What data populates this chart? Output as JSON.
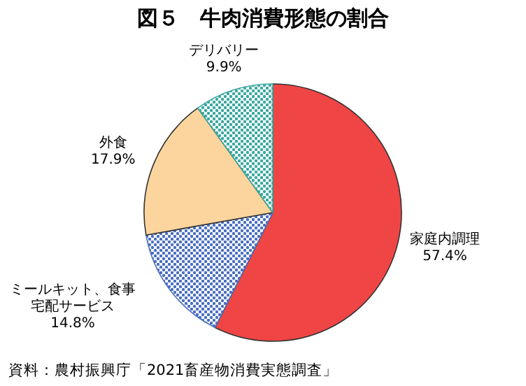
{
  "chart_data": {
    "type": "pie",
    "title": "図５　牛肉消費形態の割合",
    "categories": [
      "家庭内調理",
      "ミールキット、食事宅配サービス",
      "外食",
      "デリバリー"
    ],
    "values": [
      57.4,
      14.8,
      17.9,
      9.9
    ],
    "value_labels": [
      "57.4%",
      "14.8%",
      "17.9%",
      "9.9%"
    ],
    "colors": [
      "#f04545",
      "#4a6fc0",
      "#fcd59e",
      "#3aa8a0"
    ],
    "annotations": [
      "資料：農村振興庁「2021畜産物消費実態調査」"
    ]
  }
}
